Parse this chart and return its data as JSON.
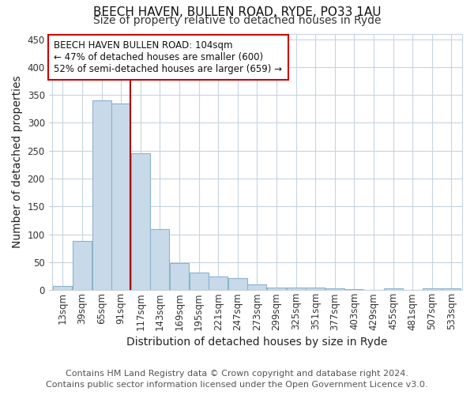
{
  "title": "BEECH HAVEN, BULLEN ROAD, RYDE, PO33 1AU",
  "subtitle": "Size of property relative to detached houses in Ryde",
  "xlabel": "Distribution of detached houses by size in Ryde",
  "ylabel": "Number of detached properties",
  "footnote1": "Contains HM Land Registry data © Crown copyright and database right 2024.",
  "footnote2": "Contains public sector information licensed under the Open Government Licence v3.0.",
  "categories": [
    "13sqm",
    "39sqm",
    "65sqm",
    "91sqm",
    "117sqm",
    "143sqm",
    "169sqm",
    "195sqm",
    "221sqm",
    "247sqm",
    "273sqm",
    "299sqm",
    "325sqm",
    "351sqm",
    "377sqm",
    "403sqm",
    "429sqm",
    "455sqm",
    "481sqm",
    "507sqm",
    "533sqm"
  ],
  "values": [
    7,
    88,
    341,
    335,
    245,
    110,
    49,
    32,
    25,
    21,
    10,
    5,
    5,
    5,
    3,
    2,
    0,
    3,
    0,
    3,
    3
  ],
  "bar_color": "#c8daea",
  "bar_edge_color": "#8ab4cc",
  "marker_label": "BEECH HAVEN BULLEN ROAD: 104sqm",
  "marker_line1": "← 47% of detached houses are smaller (600)",
  "marker_line2": "52% of semi-detached houses are larger (659) →",
  "marker_color": "#aa0000",
  "annotation_box_color": "#cc0000",
  "ylim": [
    0,
    460
  ],
  "background_color": "#ffffff",
  "plot_bg_color": "#ffffff",
  "grid_color": "#c8d4e0",
  "title_fontsize": 11,
  "subtitle_fontsize": 10,
  "axis_label_fontsize": 10,
  "tick_fontsize": 8.5,
  "footnote_fontsize": 8,
  "annotation_fontsize": 8.5
}
